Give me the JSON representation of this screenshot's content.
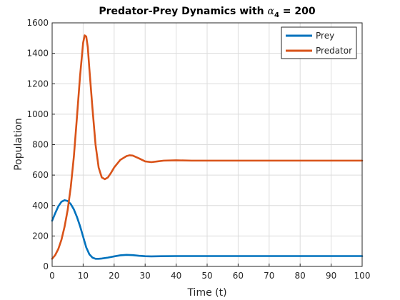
{
  "chart_data": {
    "type": "line",
    "title_prefix": "Predator-Prey Dynamics with ",
    "title_symbol": "α",
    "title_subscript": "4",
    "title_suffix": " = 200",
    "xlabel": "Time (t)",
    "ylabel": "Population",
    "xlim": [
      0,
      100
    ],
    "ylim": [
      0,
      1600
    ],
    "xticks": [
      0,
      10,
      20,
      30,
      40,
      50,
      60,
      70,
      80,
      90,
      100
    ],
    "yticks": [
      0,
      200,
      400,
      600,
      800,
      1000,
      1200,
      1400,
      1600
    ],
    "grid": true,
    "legend_position": "top-right",
    "series": [
      {
        "name": "Prey",
        "color": "#0072BD",
        "x": [
          0,
          1,
          2,
          3,
          4,
          5,
          6,
          7,
          8,
          9,
          10,
          11,
          12,
          13,
          14,
          15,
          16,
          18,
          20,
          22,
          24,
          26,
          28,
          30,
          32,
          35,
          40,
          45,
          50,
          60,
          70,
          80,
          90,
          100
        ],
        "y": [
          300,
          350,
          395,
          425,
          435,
          430,
          410,
          375,
          325,
          265,
          195,
          125,
          80,
          58,
          50,
          50,
          52,
          58,
          66,
          73,
          76,
          74,
          70,
          67,
          66,
          67,
          68,
          68,
          68,
          68,
          68,
          68,
          68,
          68
        ]
      },
      {
        "name": "Predator",
        "color": "#D95319",
        "x": [
          0,
          1,
          2,
          3,
          4,
          5,
          6,
          7,
          8,
          9,
          10,
          10.5,
          11,
          11.5,
          12,
          13,
          14,
          15,
          16,
          17,
          18,
          19,
          20,
          22,
          24,
          25,
          26,
          28,
          30,
          32,
          34,
          36,
          40,
          45,
          50,
          60,
          70,
          80,
          90,
          100
        ],
        "y": [
          50,
          75,
          115,
          175,
          260,
          370,
          520,
          720,
          980,
          1250,
          1470,
          1518,
          1510,
          1440,
          1300,
          1040,
          800,
          650,
          585,
          573,
          585,
          615,
          650,
          700,
          725,
          730,
          728,
          710,
          690,
          685,
          690,
          695,
          697,
          695,
          695,
          695,
          695,
          695,
          695,
          695
        ]
      }
    ]
  }
}
